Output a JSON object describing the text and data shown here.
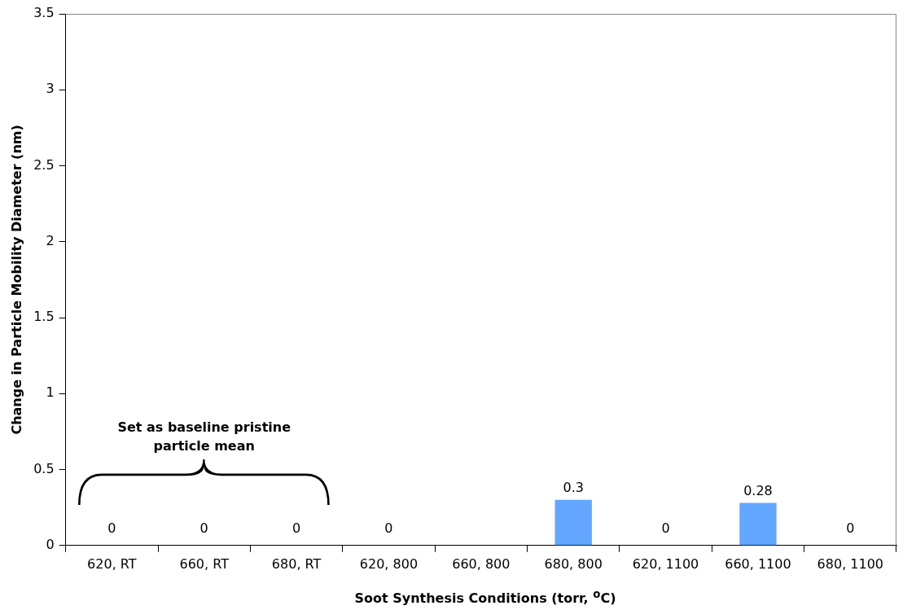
{
  "chart_data": {
    "type": "bar",
    "xlabel": "Soot Synthesis Conditions (torr, $^{o}$C)",
    "ylabel": "Change in Particle Mobility Diameter (nm)",
    "categories": [
      "620, RT",
      "660, RT",
      "680, RT",
      "620, 800",
      "660, 800",
      "680, 800",
      "620, 1100",
      "660, 1100",
      "680, 1100"
    ],
    "values": [
      0,
      0,
      0,
      0,
      null,
      0.3,
      0,
      0.28,
      0
    ],
    "value_labels": [
      "0",
      "0",
      "0",
      "0",
      null,
      "0.3",
      "0",
      "0.28",
      "0"
    ],
    "color": "#62a6ff",
    "ylim": [
      0,
      3.5
    ],
    "yticks": [
      0,
      0.5,
      1,
      1.5,
      2,
      2.5,
      3,
      3.5
    ],
    "annotations": [
      "Set as baseline pristine particle mean"
    ]
  }
}
